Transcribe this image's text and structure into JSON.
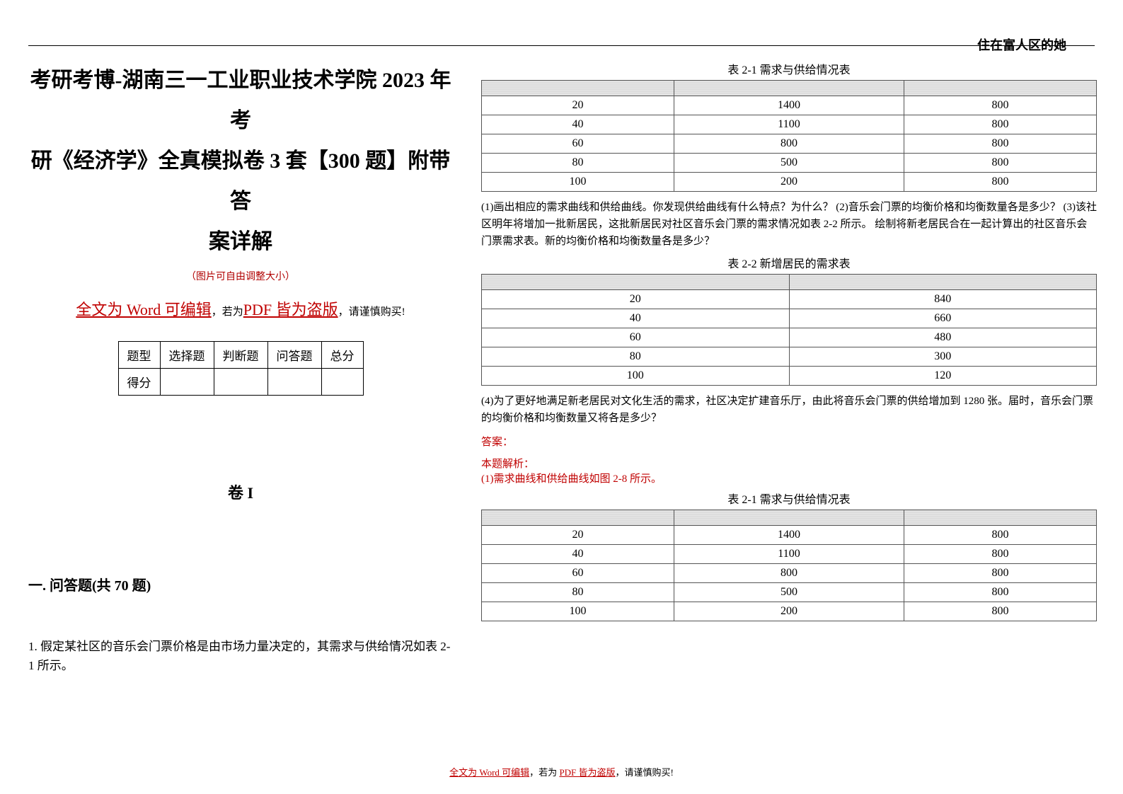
{
  "header_note": "住在富人区的她",
  "title_line1": "考研考博-湖南三一工业职业技术学院 2023 年考",
  "title_line2": "研《经济学》全真模拟卷 3 套【300 题】附带答",
  "title_line3": "案详解",
  "subtitle_red": "（图片可自由调整大小）",
  "notice_prefix": "全文为 Word 可编辑",
  "notice_mid": "，若为",
  "notice_pirate": "PDF 皆为盗版",
  "notice_suffix": "，请谨慎购买!",
  "score_table": {
    "cols": [
      "题型",
      "选择题",
      "判断题",
      "问答题",
      "总分"
    ],
    "row_label": "得分"
  },
  "volume": "卷 I",
  "section_head": "一. 问答题(共 70 题)",
  "question1": "1.  假定某社区的音乐会门票价格是由市场力量决定的，其需求与供给情况如表 2-1 所示。",
  "table21_caption": "表 2-1  需求与供给情况表",
  "table21": {
    "rows": [
      [
        "20",
        "1400",
        "800"
      ],
      [
        "40",
        "1100",
        "800"
      ],
      [
        "60",
        "800",
        "800"
      ],
      [
        "80",
        "500",
        "800"
      ],
      [
        "100",
        "200",
        "800"
      ]
    ]
  },
  "q_text1": "(1)画出相应的需求曲线和供给曲线。你发现供给曲线有什么特点？为什么？ (2)音乐会门票的均衡价格和均衡数量各是多少？  (3)该社区明年将增加一批新居民，这批新居民对社区音乐会门票的需求情况如表 2-2 所示。 绘制将新老居民合在一起计算出的社区音乐会门票需求表。新的均衡价格和均衡数量各是多少？",
  "table22_caption": "表 2-2  新增居民的需求表",
  "table22": {
    "rows": [
      [
        "20",
        "840"
      ],
      [
        "40",
        "660"
      ],
      [
        "60",
        "480"
      ],
      [
        "80",
        "300"
      ],
      [
        "100",
        "120"
      ]
    ]
  },
  "q_text2": "(4)为了更好地满足新老居民对文化生活的需求，社区决定扩建音乐厅，由此将音乐会门票的供给增加到 1280 张。届时，音乐会门票的均衡价格和均衡数量又将各是多少？",
  "answer_label": "答案：",
  "analysis_label": "本题解析：",
  "analysis_text": "(1)需求曲线和供给曲线如图 2-8 所示。",
  "table21b_caption": "表 2-1  需求与供给情况表",
  "footer_prefix": "全文为 Word 可编辑",
  "footer_mid": "，若为 ",
  "footer_pirate": "PDF 皆为盗版",
  "footer_suffix": "，请谨慎购买!",
  "colors": {
    "red": "#c00000",
    "black": "#000000",
    "table_header_bg": "#dcdcdc",
    "border": "#555555",
    "background": "#ffffff"
  },
  "fonts": {
    "title_size_pt": 30,
    "body_size_pt": 15,
    "caption_size_pt": 16,
    "header_note_size_pt": 18,
    "family": "SimSun"
  }
}
